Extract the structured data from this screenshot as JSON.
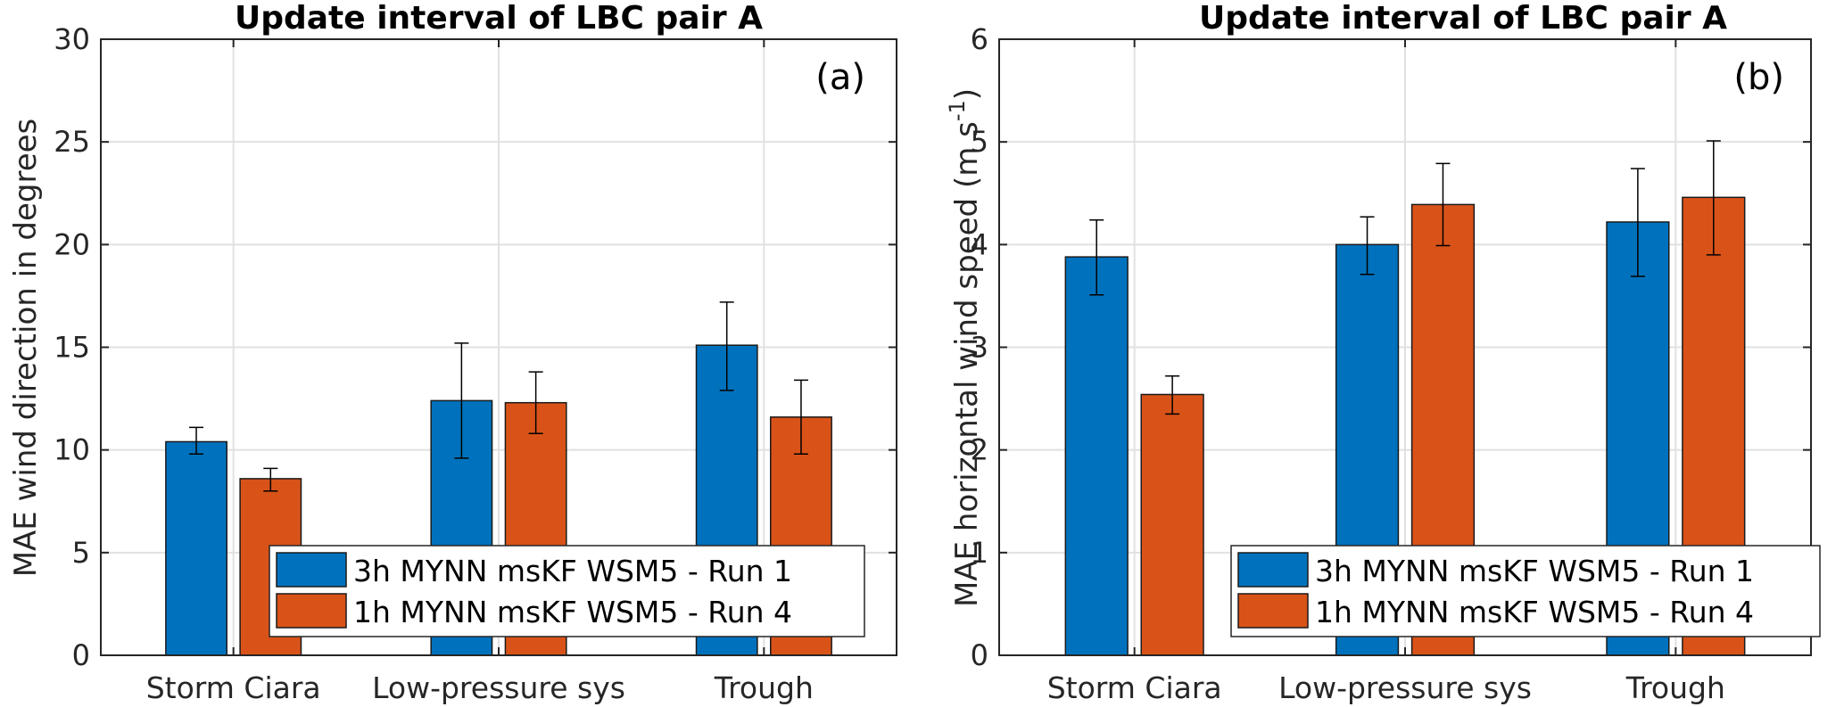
{
  "chart_data": [
    {
      "type": "bar",
      "panel_label": "(a)",
      "title": "Update interval of LBC pair A",
      "xlabel": "",
      "ylabel": "MAE wind direction in degrees",
      "ylim": [
        0,
        30
      ],
      "yticks": [
        "0",
        "5",
        "10",
        "15",
        "20",
        "25",
        "30"
      ],
      "grid": true,
      "legend_position": "bottom-right",
      "categories": [
        "Storm Ciara",
        "Low-pressure sys",
        "Trough"
      ],
      "series": [
        {
          "name": "3h MYNN msKF WSM5 - Run 1",
          "color": "#0072BD",
          "values": [
            10.4,
            12.4,
            15.1
          ],
          "error_low": [
            9.8,
            9.6,
            12.9
          ],
          "error_high": [
            11.1,
            15.2,
            17.2
          ]
        },
        {
          "name": "1h MYNN msKF WSM5 - Run 4",
          "color": "#D95319",
          "values": [
            8.6,
            12.3,
            11.6
          ],
          "error_low": [
            8.0,
            10.8,
            9.8
          ],
          "error_high": [
            9.1,
            13.8,
            13.4
          ]
        }
      ]
    },
    {
      "type": "bar",
      "panel_label": "(b)",
      "title": "Update interval of LBC pair A",
      "xlabel": "",
      "ylabel": "MAE horizontal wind speed (m s",
      "ylabel_superscript": "-1",
      "ylabel_suffix": ")",
      "ylim": [
        0,
        6
      ],
      "yticks": [
        "0",
        "1",
        "2",
        "3",
        "4",
        "5",
        "6"
      ],
      "grid": true,
      "legend_position": "bottom-right",
      "categories": [
        "Storm Ciara",
        "Low-pressure sys",
        "Trough"
      ],
      "series": [
        {
          "name": "3h MYNN msKF WSM5 - Run 1",
          "color": "#0072BD",
          "values": [
            3.88,
            4.0,
            4.22
          ],
          "error_low": [
            3.51,
            3.71,
            3.69
          ],
          "error_high": [
            4.24,
            4.27,
            4.74
          ]
        },
        {
          "name": "1h MYNN msKF WSM5 - Run 4",
          "color": "#D95319",
          "values": [
            2.54,
            4.39,
            4.46
          ],
          "error_low": [
            2.35,
            3.99,
            3.9
          ],
          "error_high": [
            2.72,
            4.79,
            5.01
          ]
        }
      ]
    }
  ]
}
